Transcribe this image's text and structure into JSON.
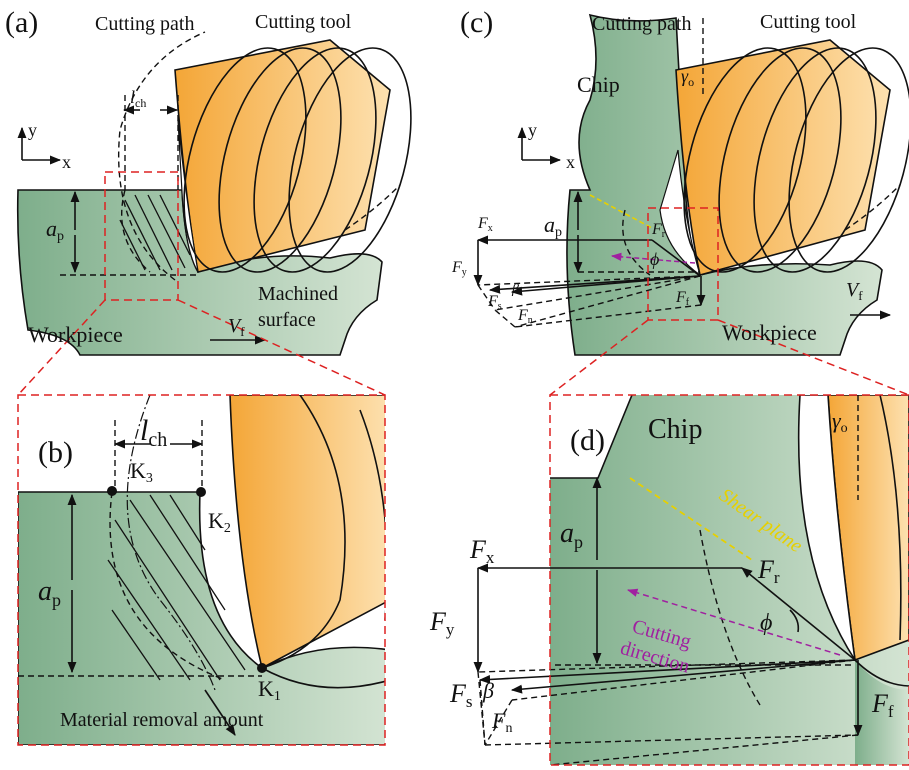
{
  "panel_a": {
    "label": "(a)",
    "cutting_path": "Cutting path",
    "cutting_tool": "Cutting tool",
    "l_ch": {
      "main": "l",
      "sub": "ch"
    },
    "axis_y": "y",
    "axis_x": "x",
    "a_p": {
      "main": "a",
      "sub": "p"
    },
    "machined_surface": [
      "Machined",
      "surface"
    ],
    "workpiece": "Workpiece",
    "v_f": {
      "main": "V",
      "sub": "f"
    }
  },
  "panel_b": {
    "label": "(b)",
    "l_ch": {
      "main": "l",
      "sub": "ch"
    },
    "k3": {
      "main": "K",
      "sub": "3"
    },
    "k2": {
      "main": "K",
      "sub": "2"
    },
    "k1": {
      "main": "K",
      "sub": "1"
    },
    "a_p": {
      "main": "a",
      "sub": "p"
    },
    "material_removal": "Material removal amount"
  },
  "panel_c": {
    "label": "(c)",
    "cutting_path": "Cutting path",
    "cutting_tool": "Cutting tool",
    "chip": "Chip",
    "gamma_o": {
      "main": "γ",
      "sub": "o"
    },
    "axis_y": "y",
    "axis_x": "x",
    "a_p": {
      "main": "a",
      "sub": "p"
    },
    "f_x": {
      "main": "F",
      "sub": "x"
    },
    "f_r": {
      "main": "F",
      "sub": "r"
    },
    "f_y": {
      "main": "F",
      "sub": "y"
    },
    "phi": "ϕ",
    "f_s": {
      "main": "F",
      "sub": "s"
    },
    "beta": "β",
    "f_n": {
      "main": "F",
      "sub": "n"
    },
    "f_f": {
      "main": "F",
      "sub": "f"
    },
    "v_f": {
      "main": "V",
      "sub": "f"
    },
    "workpiece": "Workpiece"
  },
  "panel_d": {
    "label": "(d)",
    "chip": "Chip",
    "gamma_o": {
      "main": "γ",
      "sub": "o"
    },
    "shear_plane": "Shear plane",
    "a_p": {
      "main": "a",
      "sub": "p"
    },
    "f_x": {
      "main": "F",
      "sub": "x"
    },
    "f_r": {
      "main": "F",
      "sub": "r"
    },
    "f_y": {
      "main": "F",
      "sub": "y"
    },
    "phi": "ϕ",
    "cutting_direction": [
      "Cutting",
      "direction"
    ],
    "f_s": {
      "main": "F",
      "sub": "s"
    },
    "beta": "β",
    "f_n": {
      "main": "F",
      "sub": "n"
    },
    "f_f": {
      "main": "F",
      "sub": "f"
    }
  }
}
